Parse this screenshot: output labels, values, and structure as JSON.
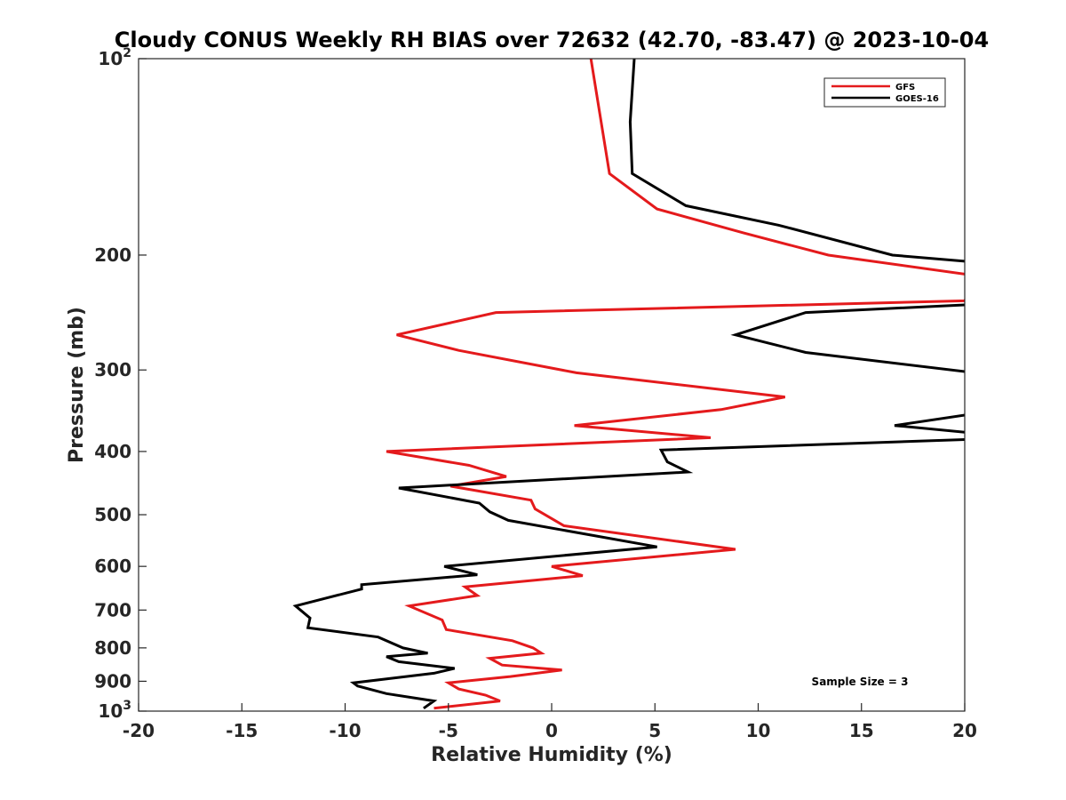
{
  "chart_data": {
    "type": "line",
    "orientation": "profile",
    "title": "Cloudy CONUS Weekly RH BIAS over 72632 (42.70, -83.47) @ 2023-10-04",
    "xlabel": "Relative Humidity (%)",
    "ylabel": "Pressure (mb)",
    "xlim": [
      -20,
      20
    ],
    "ylim": [
      100,
      1000
    ],
    "y_scale": "log",
    "y_reversed": true,
    "grid": false,
    "legend_position": "top-right",
    "x_ticks": [
      {
        "value": -20,
        "label": "-20"
      },
      {
        "value": -15,
        "label": "-15"
      },
      {
        "value": -10,
        "label": "-10"
      },
      {
        "value": -5,
        "label": "-5"
      },
      {
        "value": 0,
        "label": "0"
      },
      {
        "value": 5,
        "label": "5"
      },
      {
        "value": 10,
        "label": "10"
      },
      {
        "value": 15,
        "label": "15"
      },
      {
        "value": 20,
        "label": "20"
      }
    ],
    "y_ticks": [
      {
        "value": 100,
        "label": "10",
        "sup": "2"
      },
      {
        "value": 200,
        "label": "200"
      },
      {
        "value": 300,
        "label": "300"
      },
      {
        "value": 400,
        "label": "400"
      },
      {
        "value": 500,
        "label": "500"
      },
      {
        "value": 600,
        "label": "600"
      },
      {
        "value": 700,
        "label": "700"
      },
      {
        "value": 800,
        "label": "800"
      },
      {
        "value": 900,
        "label": "900"
      },
      {
        "value": 1000,
        "label": "10",
        "sup": "3"
      }
    ],
    "annotation": "Sample Size = 3",
    "series": [
      {
        "name": "GFS",
        "color": "#e41a1c",
        "points": [
          {
            "x": 1.9,
            "y": 100
          },
          {
            "x": 2.8,
            "y": 150
          },
          {
            "x": 5.1,
            "y": 170
          },
          {
            "x": 9.3,
            "y": 185
          },
          {
            "x": 13.4,
            "y": 200
          },
          {
            "x": 20.5,
            "y": 215
          },
          {
            "x": 20.5,
            "y": 220
          },
          {
            "x": 20.0,
            "y": 235
          },
          {
            "x": -2.7,
            "y": 245
          },
          {
            "x": -7.5,
            "y": 265
          },
          {
            "x": -4.5,
            "y": 280
          },
          {
            "x": 1.2,
            "y": 303
          },
          {
            "x": 11.3,
            "y": 330
          },
          {
            "x": 8.2,
            "y": 345
          },
          {
            "x": 1.1,
            "y": 365
          },
          {
            "x": 7.7,
            "y": 381
          },
          {
            "x": -8.0,
            "y": 400
          },
          {
            "x": -4.0,
            "y": 420
          },
          {
            "x": -2.2,
            "y": 437
          },
          {
            "x": -4.9,
            "y": 452
          },
          {
            "x": -1.0,
            "y": 475
          },
          {
            "x": -0.8,
            "y": 490
          },
          {
            "x": 0.6,
            "y": 520
          },
          {
            "x": 8.9,
            "y": 565
          },
          {
            "x": 0.0,
            "y": 600
          },
          {
            "x": 1.5,
            "y": 620
          },
          {
            "x": -4.2,
            "y": 645
          },
          {
            "x": -3.6,
            "y": 665
          },
          {
            "x": -6.9,
            "y": 690
          },
          {
            "x": -5.3,
            "y": 725
          },
          {
            "x": -5.1,
            "y": 750
          },
          {
            "x": -1.9,
            "y": 780
          },
          {
            "x": -0.9,
            "y": 800
          },
          {
            "x": -0.5,
            "y": 815
          },
          {
            "x": -3.0,
            "y": 830
          },
          {
            "x": -2.4,
            "y": 850
          },
          {
            "x": 0.5,
            "y": 865
          },
          {
            "x": -2.0,
            "y": 885
          },
          {
            "x": -5.0,
            "y": 905
          },
          {
            "x": -4.5,
            "y": 925
          },
          {
            "x": -3.2,
            "y": 945
          },
          {
            "x": -2.5,
            "y": 965
          },
          {
            "x": -5.7,
            "y": 990
          }
        ]
      },
      {
        "name": "GOES-16",
        "color": "#000000",
        "points": [
          {
            "x": 4.0,
            "y": 100
          },
          {
            "x": 3.8,
            "y": 125
          },
          {
            "x": 3.9,
            "y": 150
          },
          {
            "x": 6.5,
            "y": 168
          },
          {
            "x": 11.0,
            "y": 180
          },
          {
            "x": 16.5,
            "y": 200
          },
          {
            "x": 20.5,
            "y": 205
          },
          {
            "x": 20.5,
            "y": 238
          },
          {
            "x": 12.3,
            "y": 245
          },
          {
            "x": 8.9,
            "y": 265
          },
          {
            "x": 12.3,
            "y": 282
          },
          {
            "x": 20.5,
            "y": 303
          },
          {
            "x": 20.5,
            "y": 350
          },
          {
            "x": 16.6,
            "y": 365
          },
          {
            "x": 20.5,
            "y": 375
          },
          {
            "x": 20.5,
            "y": 383
          },
          {
            "x": 5.3,
            "y": 398
          },
          {
            "x": 5.6,
            "y": 415
          },
          {
            "x": 6.6,
            "y": 430
          },
          {
            "x": -7.4,
            "y": 455
          },
          {
            "x": -3.5,
            "y": 480
          },
          {
            "x": -3.0,
            "y": 495
          },
          {
            "x": -2.1,
            "y": 510
          },
          {
            "x": 5.1,
            "y": 560
          },
          {
            "x": -5.2,
            "y": 600
          },
          {
            "x": -3.6,
            "y": 618
          },
          {
            "x": -9.2,
            "y": 640
          },
          {
            "x": -9.2,
            "y": 650
          },
          {
            "x": -12.4,
            "y": 690
          },
          {
            "x": -11.7,
            "y": 720
          },
          {
            "x": -11.8,
            "y": 745
          },
          {
            "x": -8.4,
            "y": 770
          },
          {
            "x": -7.2,
            "y": 800
          },
          {
            "x": -6.0,
            "y": 815
          },
          {
            "x": -8.0,
            "y": 825
          },
          {
            "x": -7.4,
            "y": 840
          },
          {
            "x": -4.7,
            "y": 860
          },
          {
            "x": -5.7,
            "y": 875
          },
          {
            "x": -9.6,
            "y": 905
          },
          {
            "x": -9.4,
            "y": 915
          },
          {
            "x": -8.0,
            "y": 940
          },
          {
            "x": -5.7,
            "y": 965
          },
          {
            "x": -6.2,
            "y": 990
          }
        ]
      }
    ]
  }
}
